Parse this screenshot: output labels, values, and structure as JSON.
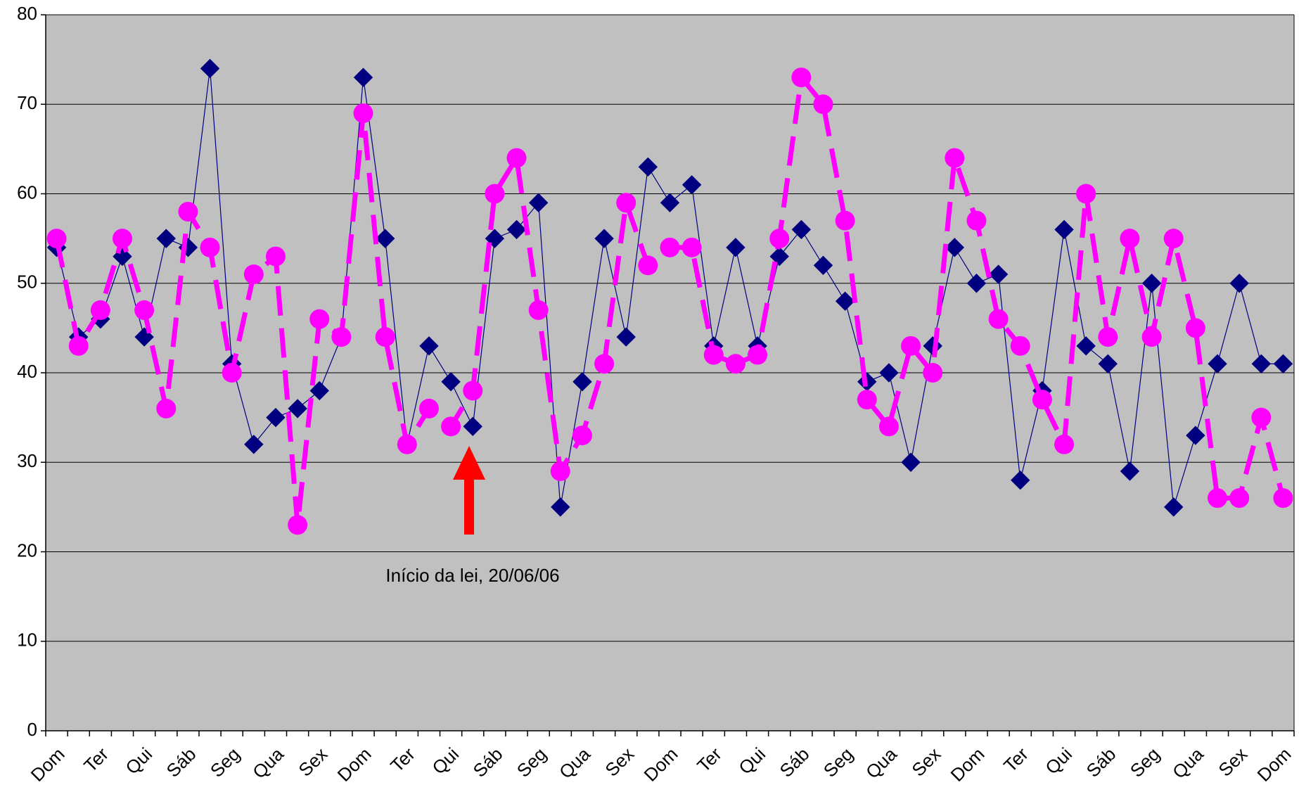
{
  "chart_data": {
    "type": "line",
    "categories": [
      "Dom",
      null,
      "Ter",
      null,
      "Qui",
      null,
      "Sáb",
      null,
      "Seg",
      null,
      "Qua",
      null,
      "Sex",
      null,
      "Dom",
      null,
      "Ter",
      null,
      "Qui",
      null,
      "Sáb",
      null,
      "Seg",
      null,
      "Qua",
      null,
      "Sex",
      null,
      "Dom",
      null,
      "Ter",
      null,
      "Qui",
      null,
      "Sáb",
      null,
      "Seg",
      null,
      "Qua",
      null,
      "Sex",
      null,
      "Dom",
      null,
      "Ter",
      null,
      "Qui",
      null,
      "Sáb",
      null,
      "Seg",
      null,
      "Qua",
      null,
      "Sex",
      null,
      "Dom"
    ],
    "series": [
      {
        "color": "#000080",
        "marker": "diamond",
        "line_style": "solid",
        "values": [
          54,
          44,
          46,
          53,
          44,
          55,
          54,
          74,
          41,
          32,
          35,
          36,
          38,
          44,
          73,
          55,
          32,
          43,
          39,
          34,
          55,
          56,
          59,
          25,
          39,
          55,
          44,
          63,
          59,
          61,
          43,
          54,
          43,
          53,
          56,
          52,
          48,
          39,
          40,
          30,
          43,
          54,
          50,
          51,
          28,
          38,
          56,
          43,
          41,
          29,
          50,
          25,
          33,
          41,
          50,
          41,
          41
        ]
      },
      {
        "color": "#ff00ff",
        "marker": "circle",
        "line_style": "dashed",
        "values": [
          55,
          43,
          47,
          55,
          47,
          36,
          58,
          54,
          40,
          51,
          53,
          23,
          46,
          44,
          69,
          44,
          32,
          36,
          34,
          38,
          60,
          64,
          47,
          29,
          33,
          41,
          59,
          52,
          54,
          54,
          42,
          41,
          42,
          55,
          73,
          70,
          57,
          37,
          34,
          43,
          40,
          64,
          57,
          46,
          43,
          37,
          32,
          60,
          44,
          55,
          44,
          55,
          45,
          26,
          26,
          35,
          26
        ]
      }
    ],
    "annotation": "Início da lei, 20/06/06",
    "ylim": [
      0,
      80
    ],
    "yticks": [
      0,
      10,
      20,
      30,
      40,
      50,
      60,
      70,
      80
    ],
    "grid": true
  }
}
